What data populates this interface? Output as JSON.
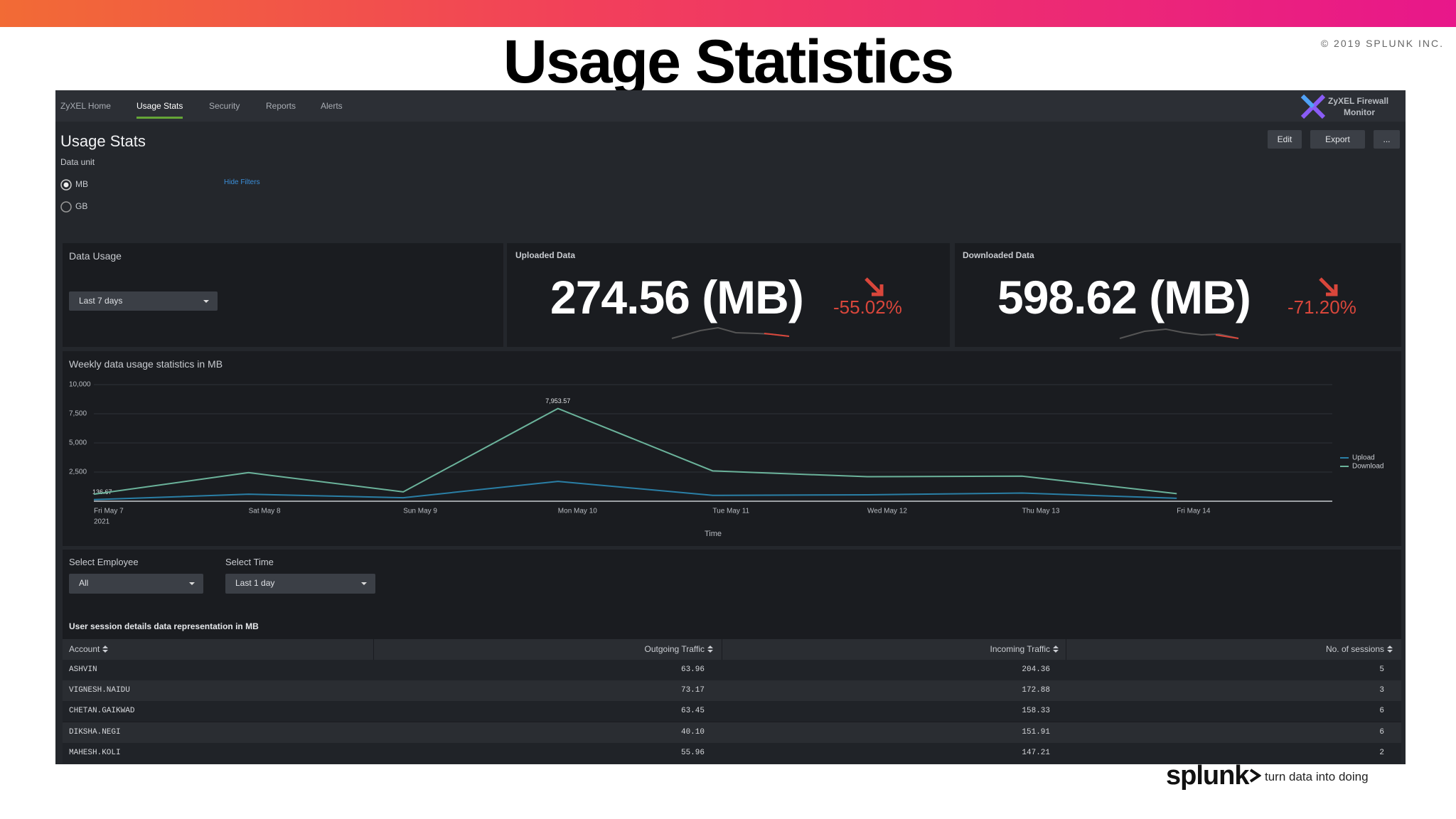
{
  "header": {
    "title": "Usage Statistics",
    "copyright": "© 2019 SPLUNK INC."
  },
  "nav": {
    "tabs": [
      "ZyXEL Home",
      "Usage Stats",
      "Security",
      "Reports",
      "Alerts"
    ],
    "logo": [
      "ZyXEL Firewall",
      "Monitor"
    ]
  },
  "dashboard": {
    "title": "Usage Stats",
    "buttons": [
      "Edit",
      "Export",
      "..."
    ],
    "data_unit_label": "Data unit",
    "options": [
      "MB",
      "GB"
    ],
    "hide_filters": "Hide Filters"
  },
  "panels": {
    "data_usage": {
      "title": "Data Usage",
      "dropdown": "Last 7 days"
    },
    "uploaded": {
      "title": "Uploaded Data",
      "value": "274.56 (MB)",
      "change": "-55.02%"
    },
    "downloaded": {
      "title": "Downloaded Data",
      "value": "598.62 (MB)",
      "change": "-71.20%"
    }
  },
  "chart_data": {
    "type": "line",
    "title": "Weekly data usage statistics in MB",
    "x_label": "Time",
    "categories": [
      "Fri May 7",
      "Sat May 8",
      "Sun May 9",
      "Mon May 10",
      "Tue May 11",
      "Wed May 12",
      "Thu May 13",
      "Fri May 14"
    ],
    "x_sub_label": "2021",
    "ylim": [
      0,
      10000
    ],
    "yticks": [
      {
        "value": 2500,
        "label": "2,500"
      },
      {
        "value": 5000,
        "label": "5,000"
      },
      {
        "value": 7500,
        "label": "7,500"
      },
      {
        "value": 10000,
        "label": "10,000"
      }
    ],
    "grid": true,
    "legend": "right",
    "series": [
      {
        "name": "Upload",
        "color": "#2a7fa6",
        "values": [
          136.67,
          600,
          300,
          1700,
          500,
          550,
          700,
          250
        ],
        "value_labels": [
          "136.67",
          null,
          null,
          null,
          null,
          null,
          null,
          null
        ]
      },
      {
        "name": "Download",
        "color": "#6bb39b",
        "values": [
          600,
          2450,
          800,
          7953.57,
          2600,
          2100,
          2150,
          650
        ],
        "value_labels": [
          null,
          null,
          null,
          "7,953.57",
          null,
          null,
          null,
          null
        ]
      }
    ]
  },
  "filters": {
    "employee_label": "Select Employee",
    "employee_value": "All",
    "time_label": "Select Time",
    "time_value": "Last 1 day"
  },
  "table": {
    "title": "User session details data representation in MB",
    "columns": [
      "Account",
      "Outgoing Traffic",
      "Incoming Traffic",
      "No. of sessions"
    ],
    "rows": [
      [
        "ASHVIN",
        "63.96",
        "204.36",
        "5"
      ],
      [
        "VIGNESH.NAIDU",
        "73.17",
        "172.88",
        "3"
      ],
      [
        "CHETAN.GAIKWAD",
        "63.45",
        "158.33",
        "6"
      ],
      [
        "DIKSHA.NEGI",
        "40.10",
        "151.91",
        "6"
      ],
      [
        "MAHESH.KOLI",
        "55.96",
        "147.21",
        "2"
      ]
    ]
  },
  "footer": {
    "brand": "splunk",
    "tagline": "turn data into doing"
  }
}
